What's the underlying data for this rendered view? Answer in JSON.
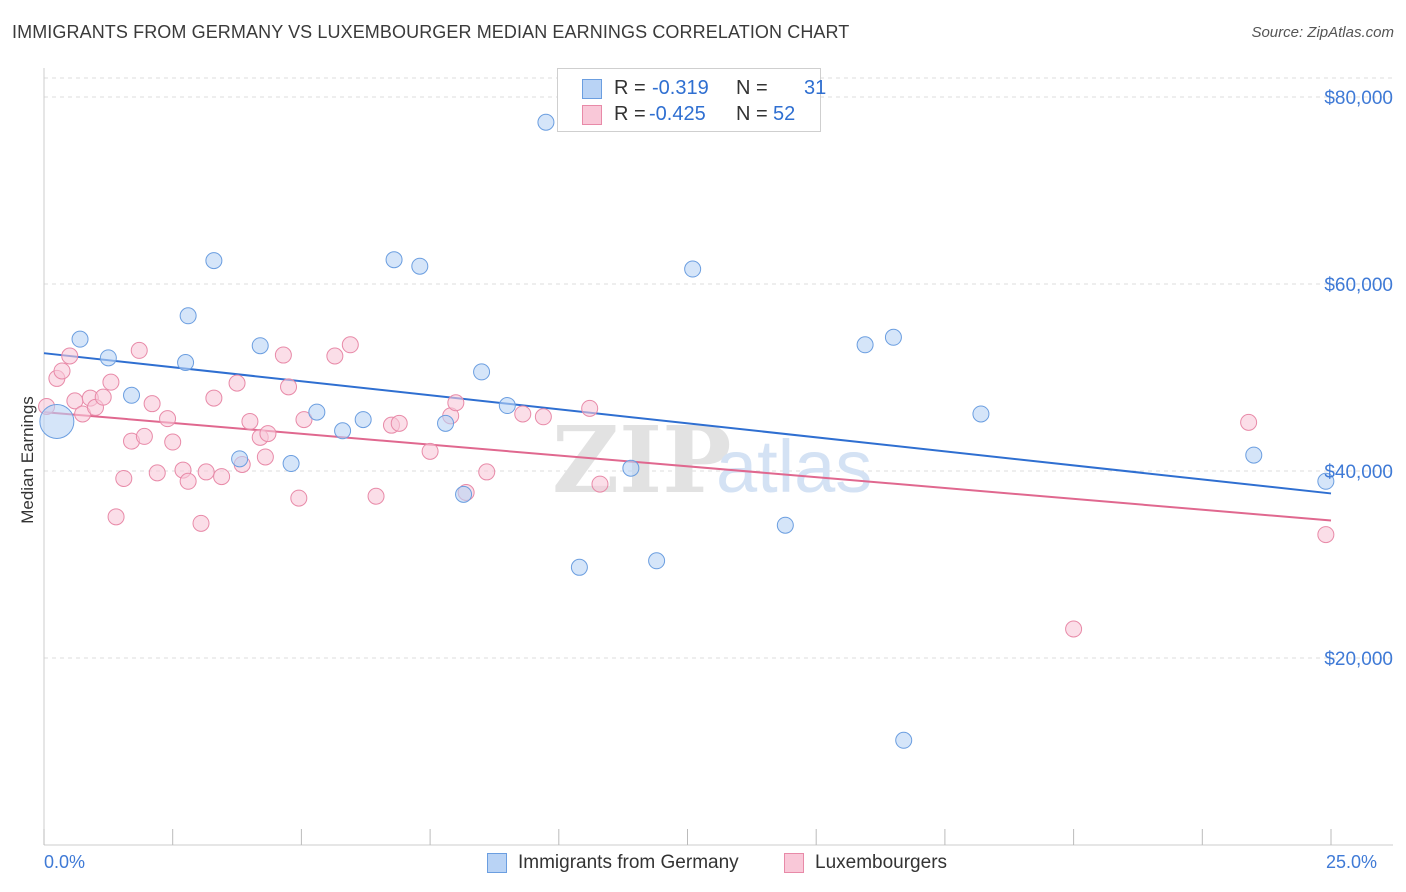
{
  "title": "IMMIGRANTS FROM GERMANY VS LUXEMBOURGER MEDIAN EARNINGS CORRELATION CHART",
  "source": "Source: ZipAtlas.com",
  "watermark": {
    "zip": "ZIP",
    "atlas": "atlas"
  },
  "legend_top": [
    {
      "r_label": "R =",
      "r_value": "-0.319",
      "n_label": "N =",
      "n_value": "31"
    },
    {
      "r_label": "R =",
      "r_value": "-0.425",
      "n_label": "N =",
      "n_value": "52"
    }
  ],
  "legend_bottom": [
    "Immigrants from Germany",
    "Luxembourgers"
  ],
  "colors": {
    "blue_fill": "#b9d3f5",
    "blue_stroke": "#6b9ee0",
    "blue_line": "#2f6fd1",
    "pink_fill": "#f9c8d8",
    "pink_stroke": "#e88aa8",
    "pink_line": "#e0688f",
    "tick_text": "#3f7ad6",
    "grid": "#dddddd"
  },
  "chart_data": {
    "type": "scatter",
    "title": "IMMIGRANTS FROM GERMANY VS LUXEMBOURGER MEDIAN EARNINGS CORRELATION CHART",
    "xlabel": "",
    "ylabel": "Median Earnings",
    "xlim": [
      0,
      25
    ],
    "ylim": [
      0,
      82000
    ],
    "x_tick_labels": [
      "0.0%",
      "25.0%"
    ],
    "y_tick_labels": [
      "$20,000",
      "$40,000",
      "$60,000",
      "$80,000"
    ],
    "y_ticks": [
      20000,
      40000,
      60000,
      80000
    ],
    "grid": true,
    "legend_position": "top-center",
    "series": [
      {
        "name": "Immigrants from Germany",
        "r": -0.319,
        "n": 31,
        "trend": {
          "x": [
            0,
            25
          ],
          "y": [
            52600,
            37600
          ]
        },
        "points": [
          {
            "x": 0.25,
            "y": 45300,
            "big": true
          },
          {
            "x": 0.7,
            "y": 54100
          },
          {
            "x": 1.25,
            "y": 52100
          },
          {
            "x": 1.7,
            "y": 48100
          },
          {
            "x": 2.8,
            "y": 56600
          },
          {
            "x": 2.75,
            "y": 51600
          },
          {
            "x": 3.3,
            "y": 62500
          },
          {
            "x": 3.8,
            "y": 41300
          },
          {
            "x": 4.2,
            "y": 53400
          },
          {
            "x": 4.8,
            "y": 40800
          },
          {
            "x": 5.3,
            "y": 46300
          },
          {
            "x": 5.8,
            "y": 44300
          },
          {
            "x": 6.2,
            "y": 45500
          },
          {
            "x": 6.8,
            "y": 62600
          },
          {
            "x": 7.3,
            "y": 61900
          },
          {
            "x": 7.8,
            "y": 45100
          },
          {
            "x": 8.15,
            "y": 37500
          },
          {
            "x": 8.5,
            "y": 50600
          },
          {
            "x": 9.0,
            "y": 47000
          },
          {
            "x": 9.75,
            "y": 77300
          },
          {
            "x": 10.4,
            "y": 29700
          },
          {
            "x": 11.4,
            "y": 40300
          },
          {
            "x": 11.9,
            "y": 30400
          },
          {
            "x": 12.6,
            "y": 61600
          },
          {
            "x": 14.4,
            "y": 34200
          },
          {
            "x": 15.95,
            "y": 53500
          },
          {
            "x": 16.5,
            "y": 54300
          },
          {
            "x": 16.7,
            "y": 11200
          },
          {
            "x": 18.2,
            "y": 46100
          },
          {
            "x": 23.5,
            "y": 41700
          },
          {
            "x": 24.9,
            "y": 38900
          }
        ]
      },
      {
        "name": "Luxembourgers",
        "r": -0.425,
        "n": 52,
        "trend": {
          "x": [
            0,
            25
          ],
          "y": [
            46300,
            34700
          ]
        },
        "points": [
          {
            "x": 0.05,
            "y": 46900
          },
          {
            "x": 0.25,
            "y": 49900
          },
          {
            "x": 0.35,
            "y": 50700
          },
          {
            "x": 0.5,
            "y": 52300
          },
          {
            "x": 0.6,
            "y": 47500
          },
          {
            "x": 0.75,
            "y": 46100
          },
          {
            "x": 0.9,
            "y": 47800
          },
          {
            "x": 1.0,
            "y": 46800
          },
          {
            "x": 1.15,
            "y": 47900
          },
          {
            "x": 1.3,
            "y": 49500
          },
          {
            "x": 1.4,
            "y": 35100
          },
          {
            "x": 1.55,
            "y": 39200
          },
          {
            "x": 1.7,
            "y": 43200
          },
          {
            "x": 1.85,
            "y": 52900
          },
          {
            "x": 1.95,
            "y": 43700
          },
          {
            "x": 2.1,
            "y": 47200
          },
          {
            "x": 2.2,
            "y": 39800
          },
          {
            "x": 2.4,
            "y": 45600
          },
          {
            "x": 2.5,
            "y": 43100
          },
          {
            "x": 2.7,
            "y": 40100
          },
          {
            "x": 2.8,
            "y": 38900
          },
          {
            "x": 3.05,
            "y": 34400
          },
          {
            "x": 3.15,
            "y": 39900
          },
          {
            "x": 3.3,
            "y": 47800
          },
          {
            "x": 3.45,
            "y": 39400
          },
          {
            "x": 3.75,
            "y": 49400
          },
          {
            "x": 3.85,
            "y": 40700
          },
          {
            "x": 4.0,
            "y": 45300
          },
          {
            "x": 4.2,
            "y": 43600
          },
          {
            "x": 4.3,
            "y": 41500
          },
          {
            "x": 4.35,
            "y": 44000
          },
          {
            "x": 4.65,
            "y": 52400
          },
          {
            "x": 4.75,
            "y": 49000
          },
          {
            "x": 4.95,
            "y": 37100
          },
          {
            "x": 5.05,
            "y": 45500
          },
          {
            "x": 5.65,
            "y": 52300
          },
          {
            "x": 5.95,
            "y": 53500
          },
          {
            "x": 6.45,
            "y": 37300
          },
          {
            "x": 6.75,
            "y": 44900
          },
          {
            "x": 6.9,
            "y": 45100
          },
          {
            "x": 7.5,
            "y": 42100
          },
          {
            "x": 7.9,
            "y": 45900
          },
          {
            "x": 8.0,
            "y": 47300
          },
          {
            "x": 8.2,
            "y": 37700
          },
          {
            "x": 8.6,
            "y": 39900
          },
          {
            "x": 9.3,
            "y": 46100
          },
          {
            "x": 9.7,
            "y": 45800
          },
          {
            "x": 10.6,
            "y": 46700
          },
          {
            "x": 10.8,
            "y": 38600
          },
          {
            "x": 20.0,
            "y": 23100
          },
          {
            "x": 23.4,
            "y": 45200
          },
          {
            "x": 24.9,
            "y": 33200
          }
        ]
      }
    ]
  }
}
